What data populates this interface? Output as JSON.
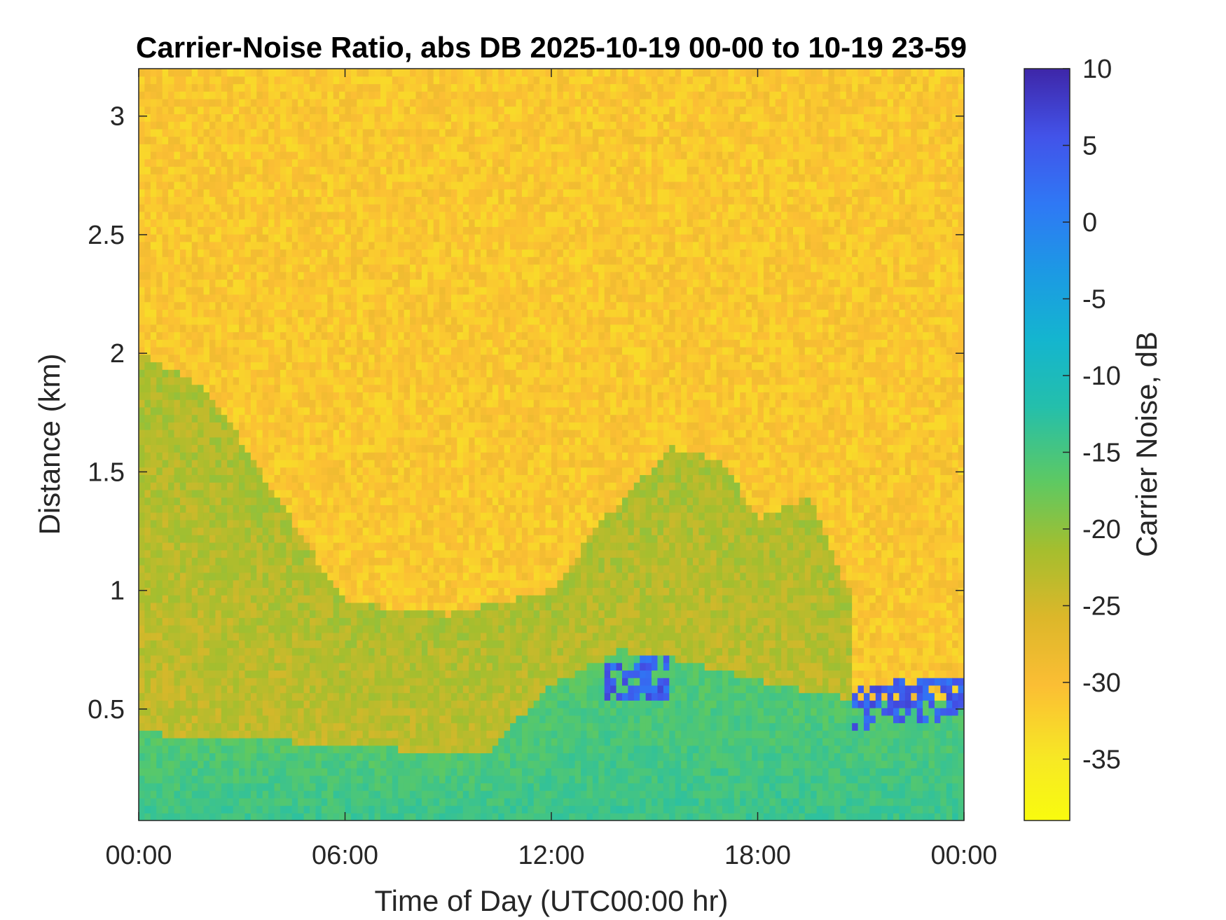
{
  "chart_data": {
    "type": "heatmap",
    "title": "Carrier-Noise Ratio, abs DB 2025-10-19 00-00 to 10-19 23-59",
    "xlabel": "Time of Day (UTC00:00 hr)",
    "ylabel": "Distance (km)",
    "xlim": [
      0,
      24
    ],
    "ylim": [
      0.03,
      3.2
    ],
    "x_ticks": [
      0,
      6,
      12,
      18,
      24
    ],
    "x_tick_labels": [
      "00:00",
      "06:00",
      "12:00",
      "18:00",
      "00:00"
    ],
    "y_ticks": [
      0.5,
      1,
      1.5,
      2,
      2.5,
      3
    ],
    "y_tick_labels": [
      "0.5",
      "1",
      "1.5",
      "2",
      "2.5",
      "3"
    ],
    "colorbar": {
      "label": "Carrier Noise, dB",
      "range": [
        -39,
        10
      ],
      "ticks": [
        10,
        5,
        0,
        -5,
        -10,
        -15,
        -20,
        -25,
        -30,
        -35
      ],
      "tick_labels": [
        "10",
        "5",
        "0",
        "-5",
        "-10",
        "-15",
        "-20",
        "-25",
        "-30",
        "-35"
      ],
      "colormap": "parula-reversed"
    },
    "grid": false,
    "legend": "none",
    "background_level_db": -31,
    "features": [
      {
        "name": "boundary layer aerosol",
        "x": [
          0,
          6,
          10,
          12,
          14,
          16,
          18,
          20.5,
          24
        ],
        "top_km": [
          0.4,
          0.35,
          0.3,
          0.6,
          0.75,
          0.7,
          0.62,
          0.55,
          0.55
        ],
        "level_db": -14
      },
      {
        "name": "strong return",
        "x": [
          13.5,
          15.5
        ],
        "top_km": [
          0.7,
          0.72
        ],
        "level_db": 4
      },
      {
        "name": "strong return late",
        "x": [
          20.8,
          24
        ],
        "top_km": [
          0.6,
          0.65
        ],
        "level_db": 4
      },
      {
        "name": "residual layer",
        "x": [
          0,
          2,
          6,
          9,
          12,
          13.5,
          15.5,
          17,
          18,
          19.5,
          20.8
        ],
        "top_km": [
          2.0,
          1.85,
          0.95,
          0.9,
          1.0,
          1.3,
          1.6,
          1.55,
          1.3,
          1.4,
          0.95
        ],
        "level_db": -24
      }
    ]
  }
}
